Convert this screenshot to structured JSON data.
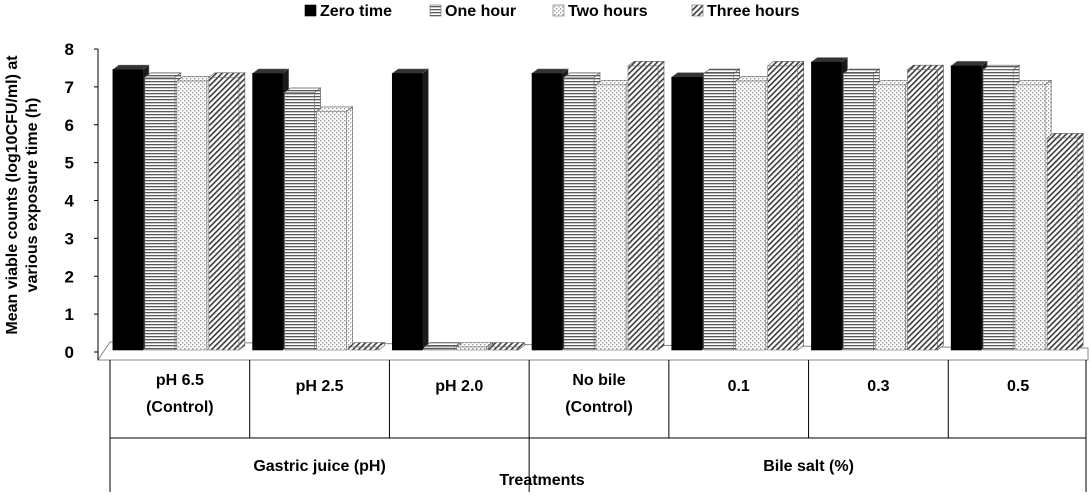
{
  "chart_data": {
    "type": "bar",
    "title": "",
    "ylabel_lines": [
      "Mean viable counts (log10CFU/ml) at",
      "various  exposure time (h)"
    ],
    "xlabel": "Treatments",
    "ylim": [
      0,
      8
    ],
    "yticks": [
      0,
      1,
      2,
      3,
      4,
      5,
      6,
      7,
      8
    ],
    "legend_position": "top-center",
    "categories": [
      [
        "pH 6.5",
        "(Control)"
      ],
      [
        "pH 2.5"
      ],
      [
        "pH 2.0"
      ],
      [
        "No bile",
        "(Control)"
      ],
      [
        "0.1"
      ],
      [
        "0.3"
      ],
      [
        "0.5"
      ]
    ],
    "groups": [
      {
        "label": "Gastric juice (pH)",
        "span": 3
      },
      {
        "label": "Bile salt (%)",
        "span": 4
      }
    ],
    "series": [
      {
        "name": "Zero time",
        "pattern": "solid",
        "values": [
          7.4,
          7.3,
          7.3,
          7.3,
          7.2,
          7.6,
          7.5
        ]
      },
      {
        "name": "One hour",
        "pattern": "horizontal-lines",
        "values": [
          7.2,
          6.8,
          0,
          7.2,
          7.3,
          7.3,
          7.4
        ]
      },
      {
        "name": "Two hours",
        "pattern": "dots",
        "values": [
          7.1,
          6.3,
          0,
          7.0,
          7.1,
          7.0,
          7.0
        ]
      },
      {
        "name": "Three hours",
        "pattern": "diagonal-lines",
        "values": [
          7.2,
          0,
          0,
          7.5,
          7.5,
          7.4,
          5.6
        ]
      }
    ],
    "colors": {
      "zero": "#000000",
      "one_bg": "#ffffff",
      "one_fg": "#5a5a5a",
      "two_bg": "#ffffff",
      "two_fg": "#9a9a9a",
      "three_bg": "#ffffff",
      "three_fg": "#3a3a3a",
      "floor": "#ffffff",
      "grid": "#888888"
    }
  }
}
